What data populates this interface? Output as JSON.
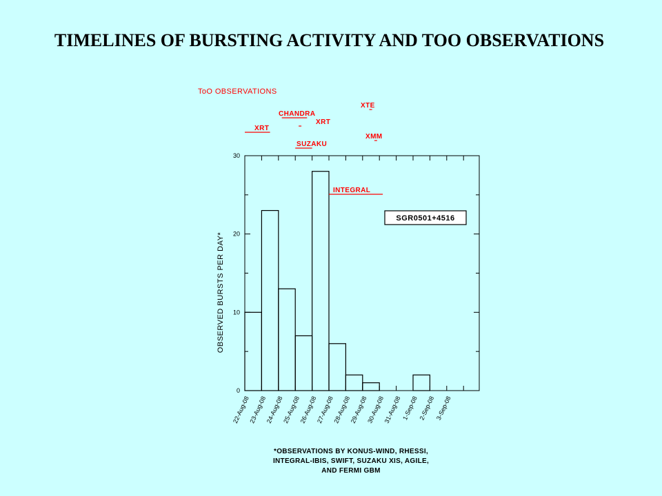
{
  "title": "TIMELINES OF BURSTING ACTIVITY AND TOO OBSERVATIONS",
  "chart_data": {
    "type": "bar",
    "style": "step-histogram",
    "categories": [
      "22-Aug-08",
      "23-Aug-08",
      "24-Aug-08",
      "25-Aug-08",
      "26-Aug-08",
      "27-Aug-08",
      "28-Aug-08",
      "29-Aug-08",
      "30-Aug-08",
      "31-Aug-08",
      "1-Sep-08",
      "2-Sep-08",
      "3-Sep-08"
    ],
    "values": [
      10,
      23,
      13,
      7,
      28,
      6,
      2,
      1,
      0,
      0,
      2,
      0,
      0
    ],
    "ylabel": "OBSERVED BURSTS PER DAY*",
    "ylim": [
      0,
      30
    ],
    "yticks": [
      0,
      10,
      20,
      30
    ],
    "grid": false,
    "legend": "SGR0501+4516",
    "legend_position": "top-right",
    "observations_heading": "ToO OBSERVATIONS",
    "observations": [
      {
        "label": "XRT",
        "start": 22.0,
        "end": 23.5
      },
      {
        "label": "CHANDRA",
        "start": 24.2,
        "end": 25.7
      },
      {
        "label": "XRT",
        "start": 25.2,
        "end": 25.3
      },
      {
        "label": "SUZAKU",
        "start": 25.0,
        "end": 26.0
      },
      {
        "label": "INTEGRAL",
        "start": 27.0,
        "end": 30.2
      },
      {
        "label": "XTE",
        "start": 29.4,
        "end": 29.5
      },
      {
        "label": "XMM",
        "start": 29.7,
        "end": 29.8
      }
    ],
    "footnote": [
      "*OBSERVATIONS BY KONUS-WIND, RHESSI,",
      "INTEGRAL-IBIS, SWIFT, SUZAKU XIS, AGILE,",
      "AND FERMI GBM"
    ],
    "colors": {
      "observations": "#ff0000",
      "histogram": "#000000",
      "background": "#ccffff"
    }
  }
}
